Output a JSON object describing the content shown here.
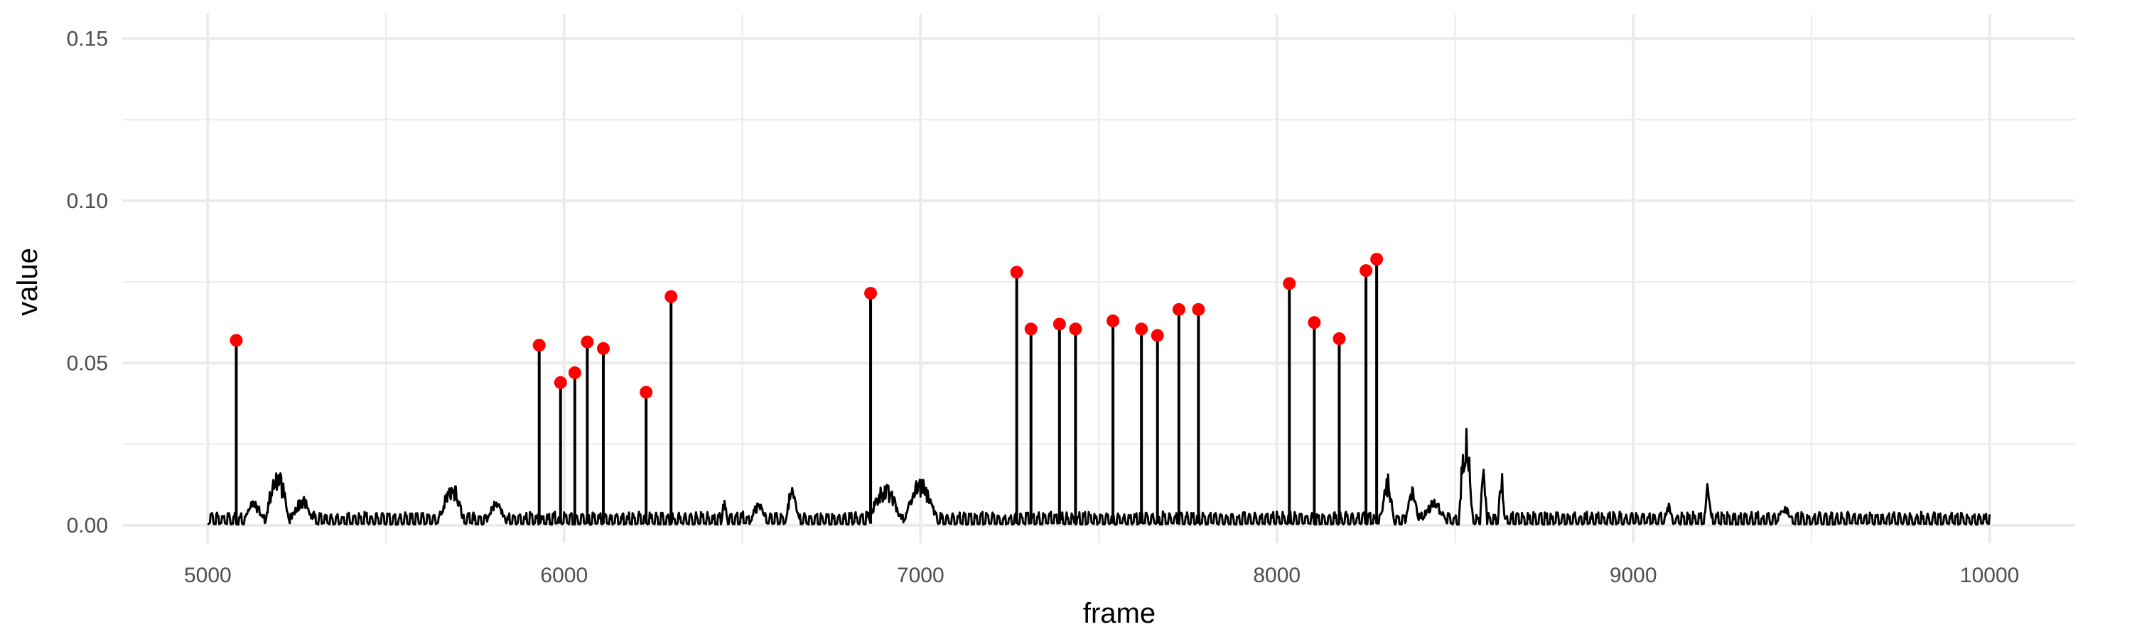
{
  "chart_data": {
    "type": "line",
    "title": "",
    "xlabel": "frame",
    "ylabel": "value",
    "xlim": [
      4760,
      10240
    ],
    "ylim": [
      -0.0055,
      0.1575
    ],
    "x_ticks": [
      5000,
      6000,
      7000,
      8000,
      9000,
      10000
    ],
    "x_minor_ticks": [
      5500,
      6500,
      7500,
      8500,
      9500
    ],
    "y_ticks": [
      0.0,
      0.05,
      0.1,
      0.15
    ],
    "y_tick_labels": [
      "0.00",
      "0.05",
      "0.10",
      "0.15"
    ],
    "y_minor_ticks": [
      0.025,
      0.075,
      0.125
    ],
    "grid": true,
    "colors": {
      "line": "#000000",
      "peak": "#ff0000",
      "grid": "#ebebeb"
    },
    "series": [
      {
        "values_description": "frame-wise value signal",
        "x_range": [
          5000,
          10000
        ],
        "bumps": [
          [
            5100,
            5160,
            0.008
          ],
          [
            5160,
            5230,
            0.018
          ],
          [
            5230,
            5300,
            0.009
          ],
          [
            5650,
            5720,
            0.014
          ],
          [
            5780,
            5840,
            0.008
          ],
          [
            6440,
            6460,
            0.008
          ],
          [
            6520,
            6570,
            0.007
          ],
          [
            6620,
            6660,
            0.012
          ],
          [
            6850,
            6950,
            0.013
          ],
          [
            6950,
            7050,
            0.015
          ],
          [
            8290,
            8330,
            0.016
          ],
          [
            8360,
            8400,
            0.012
          ],
          [
            8400,
            8480,
            0.008
          ],
          [
            8510,
            8550,
            0.032
          ],
          [
            8570,
            8590,
            0.018
          ],
          [
            8620,
            8640,
            0.017
          ],
          [
            9090,
            9110,
            0.007
          ],
          [
            9200,
            9220,
            0.014
          ],
          [
            9400,
            9450,
            0.006
          ]
        ]
      }
    ],
    "peaks": {
      "x": [
        5080,
        5930,
        5990,
        6030,
        6065,
        6110,
        6230,
        6300,
        6860,
        7270,
        7310,
        7390,
        7435,
        7540,
        7620,
        7665,
        7725,
        7780,
        8035,
        8105,
        8175,
        8250,
        8280
      ],
      "y": [
        0.057,
        0.0555,
        0.044,
        0.047,
        0.0565,
        0.0545,
        0.041,
        0.0705,
        0.0715,
        0.078,
        0.0605,
        0.062,
        0.0605,
        0.063,
        0.0605,
        0.0585,
        0.0665,
        0.0665,
        0.0745,
        0.0625,
        0.0575,
        0.0785,
        0.082
      ]
    }
  }
}
